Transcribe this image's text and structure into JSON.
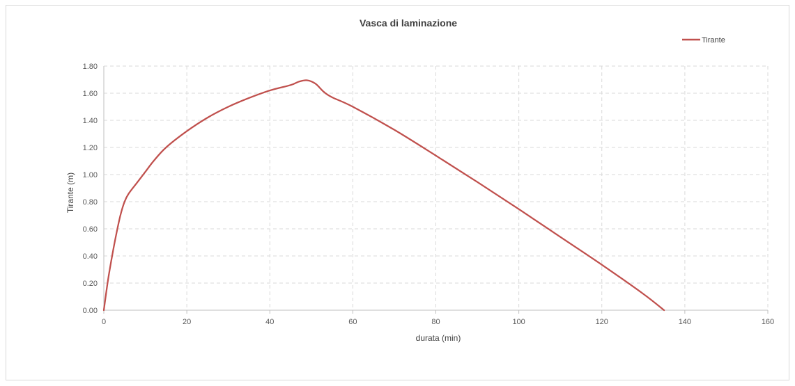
{
  "chart_data": {
    "type": "line",
    "title": "Vasca di laminazione",
    "xlabel": "durata (min)",
    "ylabel": "Tirante (m)",
    "xlim": [
      0,
      160
    ],
    "ylim": [
      0,
      1.8
    ],
    "x_ticks": [
      "0",
      "20",
      "40",
      "60",
      "80",
      "100",
      "120",
      "140",
      "160"
    ],
    "y_ticks": [
      "0.00",
      "0.20",
      "0.40",
      "0.60",
      "0.80",
      "1.00",
      "1.20",
      "1.40",
      "1.60",
      "1.80"
    ],
    "grid": true,
    "legend_position": "top-right",
    "series": [
      {
        "name": "Tirante",
        "color": "#c0504d",
        "x": [
          0,
          1,
          2,
          3,
          4,
          5,
          6,
          8,
          10,
          12,
          15,
          20,
          25,
          30,
          35,
          40,
          45,
          47,
          49,
          51,
          53,
          55,
          60,
          70,
          80,
          90,
          100,
          110,
          120,
          130,
          135
        ],
        "y": [
          0.0,
          0.22,
          0.4,
          0.56,
          0.7,
          0.8,
          0.86,
          0.94,
          1.02,
          1.1,
          1.2,
          1.32,
          1.42,
          1.5,
          1.565,
          1.62,
          1.66,
          1.685,
          1.695,
          1.67,
          1.61,
          1.57,
          1.5,
          1.33,
          1.14,
          0.945,
          0.745,
          0.54,
          0.335,
          0.12,
          0.0
        ]
      }
    ]
  }
}
